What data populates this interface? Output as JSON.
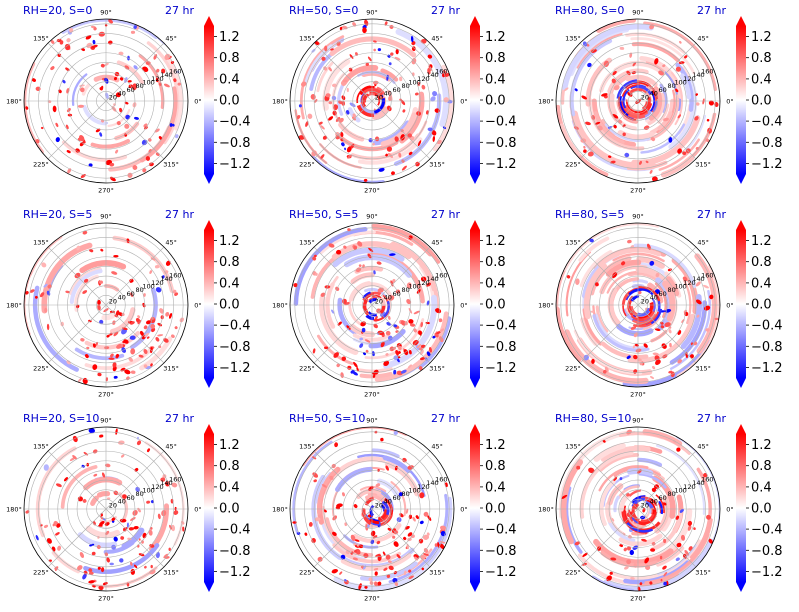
{
  "panels": [
    {
      "title": "RH=20, S=0",
      "time": "27 hr"
    },
    {
      "title": "RH=50, S=0",
      "time": "27 hr"
    },
    {
      "title": "RH=80, S=0",
      "time": "27 hr"
    },
    {
      "title": "RH=20, S=5",
      "time": "27 hr"
    },
    {
      "title": "RH=50, S=5",
      "time": "27 hr"
    },
    {
      "title": "RH=80, S=5",
      "time": "27 hr"
    },
    {
      "title": "RH=20, S=10",
      "time": "27 hr"
    },
    {
      "title": "RH=50, S=10",
      "time": "27 hr"
    },
    {
      "title": "RH=80, S=10",
      "time": "27 hr"
    }
  ],
  "chart_data": {
    "type": "heatmap",
    "projection": "polar",
    "angle_tick_labels": [
      "0°",
      "45°",
      "90°",
      "135°",
      "180°",
      "225°",
      "270°",
      "315°"
    ],
    "radial_tick_labels": [
      "20",
      "40",
      "60",
      "80",
      "100",
      "120",
      "140",
      "160"
    ],
    "r_range": [
      0,
      160
    ],
    "colorbar": {
      "colormap": "bwr",
      "range": [
        -1.4,
        1.4
      ],
      "extend": "both",
      "tick_labels": [
        "1.2",
        "0.8",
        "0.4",
        "0.0",
        "−0.4",
        "−0.8",
        "−1.2"
      ],
      "tick_values": [
        1.2,
        0.8,
        0.4,
        0.0,
        -0.4,
        -0.8,
        -1.2
      ]
    },
    "colors": {
      "positive": "#ff0000",
      "negative": "#0000ff",
      "zero": "#ffffff",
      "title": "#0000cc"
    }
  }
}
